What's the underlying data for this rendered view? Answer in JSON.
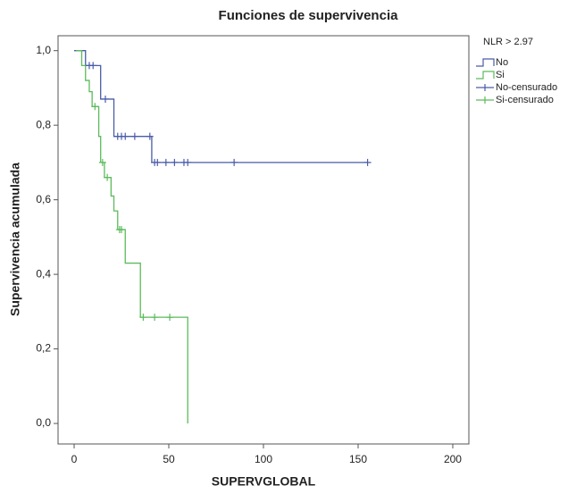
{
  "chart_data": {
    "type": "step",
    "title": "Funciones de supervivencia",
    "x_label": "SUPERVGLOBAL",
    "y_label": "Supervivencia acumulada",
    "legend_title": "NLR > 2.97",
    "legend_position": "right",
    "xlim": [
      -8.5,
      208.5
    ],
    "ylim": [
      -0.055,
      1.04
    ],
    "xticks": [
      0,
      50,
      100,
      150,
      200
    ],
    "yticks": [
      {
        "value": 0.0,
        "label": "0,0"
      },
      {
        "value": 0.2,
        "label": "0,2"
      },
      {
        "value": 0.4,
        "label": "0,4"
      },
      {
        "value": 0.6,
        "label": "0,6"
      },
      {
        "value": 0.8,
        "label": "0,8"
      },
      {
        "value": 1.0,
        "label": "1,0"
      }
    ],
    "series": [
      {
        "name": "No",
        "color": "#4a5ca8",
        "style": "step",
        "x": [
          0,
          6,
          14,
          21,
          41,
          155
        ],
        "values": [
          1.0,
          0.96,
          0.87,
          0.77,
          0.7,
          0.7
        ]
      },
      {
        "name": "Si",
        "color": "#5cbb5c",
        "style": "step",
        "x": [
          1,
          4,
          6,
          8,
          9.5,
          13,
          14,
          16,
          19.5,
          21,
          23,
          27,
          35,
          60
        ],
        "values": [
          1.0,
          0.96,
          0.92,
          0.89,
          0.85,
          0.77,
          0.7,
          0.66,
          0.61,
          0.57,
          0.52,
          0.43,
          0.285,
          0.0
        ]
      },
      {
        "name": "No-censurado",
        "color": "#4a5ca8",
        "style": "censor",
        "x": [
          8,
          10,
          16.5,
          23,
          25,
          27,
          32,
          40,
          42.5,
          44,
          48.5,
          53,
          58,
          60,
          84.5,
          155
        ],
        "values": [
          0.96,
          0.96,
          0.87,
          0.77,
          0.77,
          0.77,
          0.77,
          0.77,
          0.7,
          0.7,
          0.7,
          0.7,
          0.7,
          0.7,
          0.7,
          0.7
        ]
      },
      {
        "name": "Si-censurado",
        "color": "#5cbb5c",
        "style": "censor",
        "x": [
          11,
          15,
          17.5,
          24,
          25,
          36.5,
          42.5,
          50.5
        ],
        "values": [
          0.85,
          0.7,
          0.66,
          0.52,
          0.52,
          0.285,
          0.285,
          0.285
        ]
      }
    ]
  }
}
